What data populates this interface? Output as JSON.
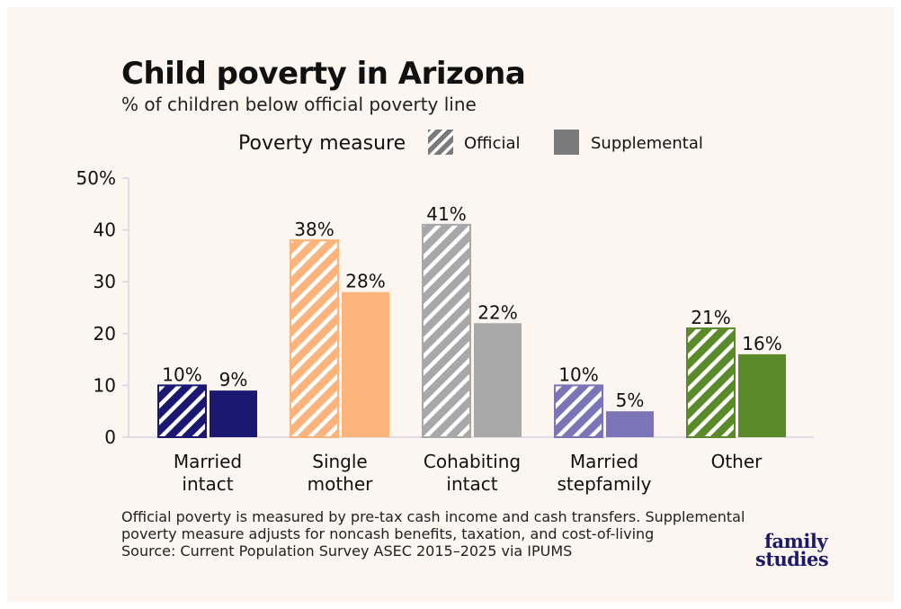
{
  "title": "Child poverty in Arizona",
  "subtitle": "% of children below official poverty line",
  "legend": {
    "title": "Poverty measure",
    "items": [
      {
        "label": "Official",
        "style": "hatched"
      },
      {
        "label": "Supplemental",
        "style": "solid"
      }
    ]
  },
  "notes": [
    "Official poverty is measured by pre-tax cash income and cash transfers. Supplemental",
    "poverty measure adjusts for noncash benefits, taxation, and cost-of-living",
    "Source: Current Population Survey ASEC 2015–2025 via IPUMS"
  ],
  "logo": {
    "line1": "family",
    "line2": "studies"
  },
  "colors": {
    "background": "#fdf5f0",
    "text": "#111111",
    "legend_swatch": "#7a7a7a",
    "axis": "#d6d6e0"
  },
  "chart_data": {
    "type": "bar",
    "categories": [
      [
        "Married",
        "intact"
      ],
      [
        "Single",
        "mother"
      ],
      [
        "Cohabiting",
        "intact"
      ],
      [
        "Married",
        "stepfamily"
      ],
      [
        "Other"
      ]
    ],
    "series": [
      {
        "name": "Official",
        "values": [
          10,
          38,
          41,
          10,
          21
        ],
        "labels": [
          "10%",
          "38%",
          "41%",
          "10%",
          "21%"
        ]
      },
      {
        "name": "Supplemental",
        "values": [
          9,
          28,
          22,
          5,
          16
        ],
        "labels": [
          "9%",
          "28%",
          "22%",
          "5%",
          "16%"
        ]
      }
    ],
    "category_colors": [
      "#1a1870",
      "#fdb47c",
      "#a8a8a8",
      "#7b75b8",
      "#5b8a2b"
    ],
    "ylim": [
      0,
      50
    ],
    "yticks": [
      0,
      10,
      20,
      30,
      40,
      50
    ],
    "ytick_labels": [
      "0",
      "10",
      "20",
      "30",
      "40",
      "50%"
    ],
    "grid": false,
    "legend_position": "top"
  }
}
